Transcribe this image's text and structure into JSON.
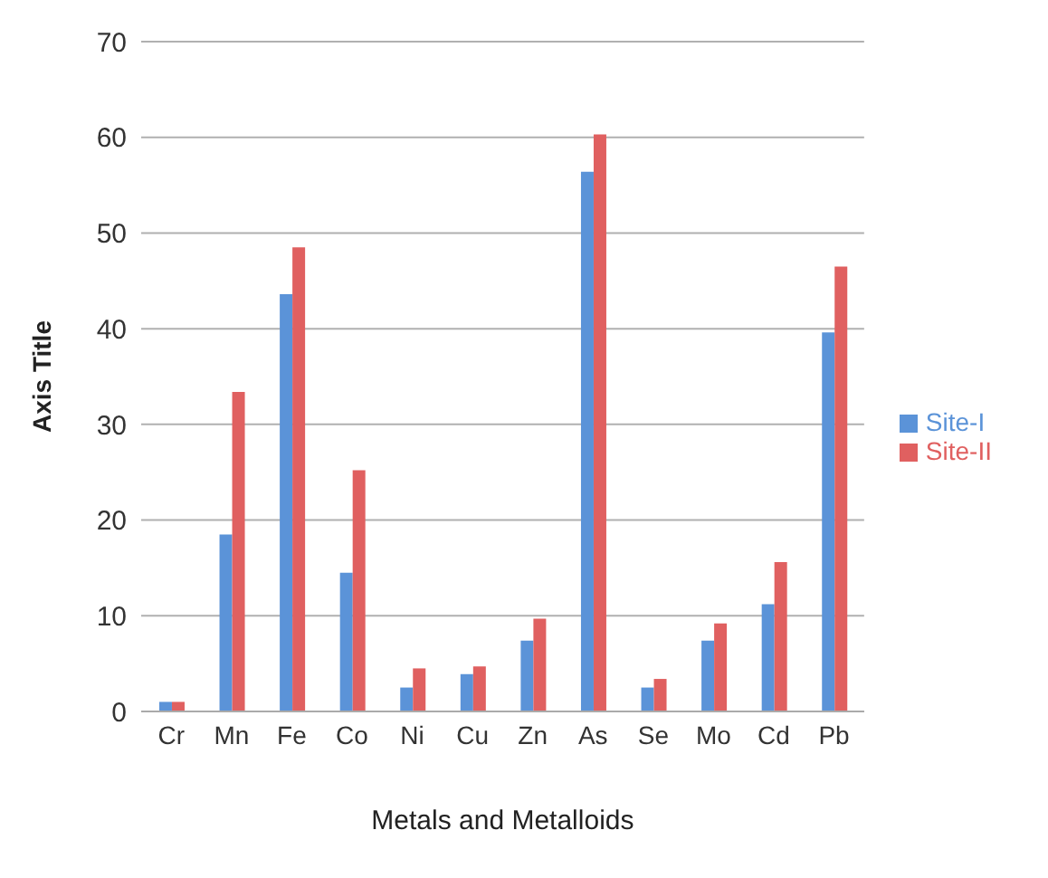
{
  "chart_data": {
    "type": "bar",
    "xlabel": "Metals and Metalloids",
    "ylabel": "Axis Title",
    "categories": [
      "Cr",
      "Mn",
      "Fe",
      "Co",
      "Ni",
      "Cu",
      "Zn",
      "As",
      "Se",
      "Mo",
      "Cd",
      "Pb"
    ],
    "series": [
      {
        "name": "Site-I",
        "color": "#5b93d8",
        "values": [
          1,
          18.5,
          43.6,
          14.5,
          2.5,
          3.9,
          7.4,
          56.4,
          2.5,
          7.4,
          11.2,
          39.6
        ]
      },
      {
        "name": "Site-II",
        "color": "#e06060",
        "values": [
          1,
          33.4,
          48.5,
          25.2,
          4.5,
          4.7,
          9.7,
          60.3,
          3.4,
          9.2,
          15.6,
          46.5
        ]
      }
    ],
    "ylim": [
      0,
      70
    ],
    "yticks": [
      0,
      10,
      20,
      30,
      40,
      50,
      60,
      70
    ],
    "grid": "y",
    "legend": "right"
  }
}
